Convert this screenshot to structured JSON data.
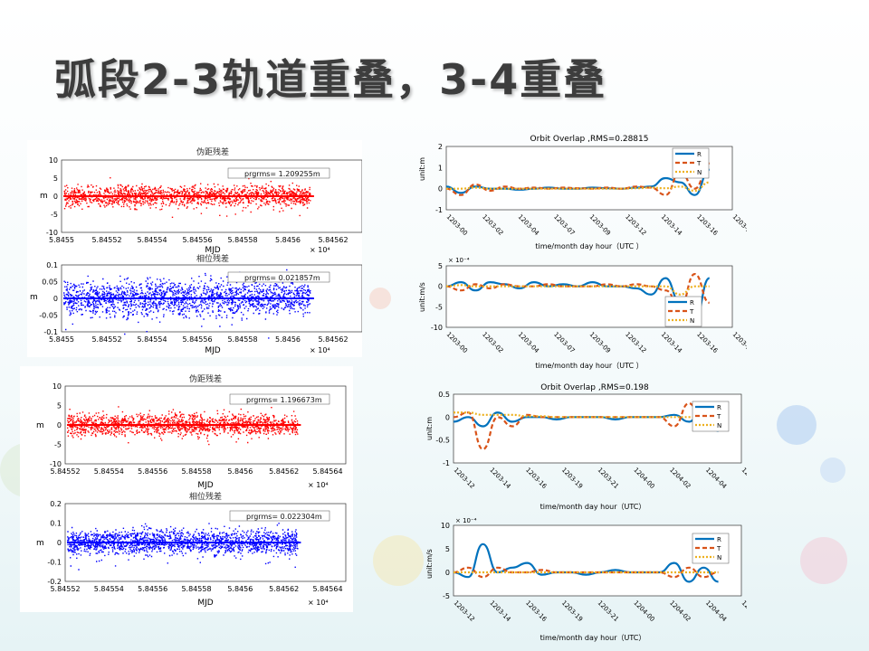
{
  "slide_title": "弧段2-3轨道重叠，3-4重叠",
  "left_top": {
    "chart1": {
      "title": "伪距残差",
      "legend": "prgrms= 1.209255m",
      "xlabel": "MJD",
      "ylabel": "m",
      "xticks": [
        "5.8455",
        "5.84552",
        "5.84554",
        "5.84556",
        "5.84558",
        "5.8456",
        "5.84562"
      ],
      "yticks": [
        "10",
        "5",
        "0",
        "-5",
        "-10"
      ],
      "exponent": "× 10⁴",
      "color": "#ff0000"
    },
    "chart2": {
      "title": "相位残差",
      "legend": "prgrms= 0.021857m",
      "xlabel": "MJD",
      "ylabel": "m",
      "xticks": [
        "5.8455",
        "5.84552",
        "5.84554",
        "5.84556",
        "5.84558",
        "5.8456",
        "5.84562"
      ],
      "yticks": [
        "0.1",
        "0.05",
        "0",
        "-0.05",
        "-0.1"
      ],
      "exponent": "× 10⁴",
      "color": "#0000ff"
    }
  },
  "left_bottom": {
    "chart1": {
      "title": "伪距残差",
      "legend": "prgrms= 1.196673m",
      "xlabel": "MJD",
      "ylabel": "m",
      "xticks": [
        "5.84552",
        "5.84554",
        "5.84556",
        "5.84558",
        "5.8456",
        "5.84562",
        "5.84564"
      ],
      "yticks": [
        "10",
        "5",
        "0",
        "-5",
        "-10"
      ],
      "exponent": "× 10⁴",
      "color": "#ff0000"
    },
    "chart2": {
      "title": "相位残差",
      "legend": "prgrms= 0.022304m",
      "xlabel": "MJD",
      "ylabel": "m",
      "xticks": [
        "5.84552",
        "5.84554",
        "5.84556",
        "5.84558",
        "5.8456",
        "5.84562",
        "5.84564"
      ],
      "yticks": [
        "0.2",
        "0.1",
        "0",
        "-0.1",
        "-0.2"
      ],
      "exponent": "× 10⁴",
      "color": "#0000ff"
    }
  },
  "right_top": {
    "pos": {
      "title": "Orbit Overlap ,RMS=0.28815",
      "ylabel": "unit:m",
      "xlabel": "time/month day hour（UTC ）",
      "yticks": [
        "2",
        "1",
        "0",
        "-1"
      ],
      "xticks": [
        "1203-00",
        "1203-02",
        "1203-04",
        "1203-07",
        "1203-09",
        "1203-12",
        "1203-14",
        "1203-16",
        "1203-19"
      ],
      "legend": [
        "R",
        "T",
        "N"
      ]
    },
    "vel": {
      "title": "",
      "ylabel": "unit:m/s",
      "xlabel": "time/month day hour（UTC ）",
      "exponent": "× 10⁻⁴",
      "yticks": [
        "5",
        "0",
        "-5",
        "-10"
      ],
      "xticks": [
        "1203-00",
        "1203-02",
        "1203-04",
        "1203-07",
        "1203-09",
        "1203-12",
        "1203-14",
        "1203-16",
        "1203-19"
      ],
      "legend": [
        "R",
        "T",
        "N"
      ]
    }
  },
  "right_bottom": {
    "pos": {
      "title": "Orbit Overlap ,RMS=0.198",
      "ylabel": "unit:m",
      "xlabel": "time/month day hour（UTC）",
      "yticks": [
        "0.5",
        "0",
        "-0.5",
        "-1"
      ],
      "xticks": [
        "1203-12",
        "1203-14",
        "1203-16",
        "1203-19",
        "1203-21",
        "1204-00",
        "1204-02",
        "1204-04",
        "1204-07"
      ],
      "legend": [
        "R",
        "T",
        "N"
      ]
    },
    "vel": {
      "title": "",
      "ylabel": "unit:m/s",
      "xlabel": "time/month day hour（UTC）",
      "exponent": "× 10⁻⁴",
      "yticks": [
        "10",
        "5",
        "0",
        "-5"
      ],
      "xticks": [
        "1203-12",
        "1203-14",
        "1203-16",
        "1203-19",
        "1203-21",
        "1204-00",
        "1204-02",
        "1204-04",
        "1204-07"
      ],
      "legend": [
        "R",
        "T",
        "N"
      ]
    }
  },
  "colors": {
    "R": "#0072bd",
    "T": "#d95319",
    "N": "#edb120",
    "red": "#ff0000",
    "blue": "#0000ff"
  },
  "chart_data": [
    {
      "type": "scatter",
      "title": "伪距残差",
      "xlabel": "MJD",
      "ylabel": "m",
      "xlim": [
        58455,
        58456.2
      ],
      "ylim": [
        -10,
        10
      ],
      "series": [
        {
          "name": "prgrms= 1.209255m",
          "band": [
            -4,
            4
          ]
        }
      ]
    },
    {
      "type": "scatter",
      "title": "相位残差",
      "xlabel": "MJD",
      "ylabel": "m",
      "xlim": [
        58455,
        58456.2
      ],
      "ylim": [
        -0.1,
        0.1
      ],
      "series": [
        {
          "name": "prgrms= 0.021857m",
          "band": [
            -0.06,
            0.06
          ]
        }
      ]
    },
    {
      "type": "scatter",
      "title": "伪距残差",
      "xlabel": "MJD",
      "ylabel": "m",
      "xlim": [
        58455.2,
        58456.4
      ],
      "ylim": [
        -10,
        10
      ],
      "series": [
        {
          "name": "prgrms= 1.196673m",
          "band": [
            -4,
            4
          ]
        }
      ]
    },
    {
      "type": "scatter",
      "title": "相位残差",
      "xlabel": "MJD",
      "ylabel": "m",
      "xlim": [
        58455.2,
        58456.4
      ],
      "ylim": [
        -0.2,
        0.2
      ],
      "series": [
        {
          "name": "prgrms= 0.022304m",
          "band": [
            -0.08,
            0.08
          ]
        }
      ]
    },
    {
      "type": "line",
      "title": "Orbit Overlap ,RMS=0.28815",
      "ylabel": "unit:m",
      "ylim": [
        -1,
        2
      ],
      "x": [
        0,
        1,
        2,
        3,
        4,
        5,
        6,
        7,
        8,
        9,
        10,
        11,
        12,
        13,
        14,
        15,
        16,
        17,
        18
      ],
      "series": [
        {
          "name": "R",
          "values": [
            0.1,
            -0.2,
            0.1,
            0,
            0,
            -0.05,
            0,
            0.05,
            0,
            0,
            0.05,
            0.02,
            0,
            0.05,
            0.1,
            0.5,
            0.3,
            -0.3,
            0.9
          ]
        },
        {
          "name": "T",
          "values": [
            0,
            -0.3,
            0.2,
            -0.1,
            0.1,
            0,
            0.05,
            0,
            0.05,
            0.02,
            0,
            0.05,
            0,
            0.1,
            0.05,
            -0.3,
            0.8,
            0,
            1.2
          ]
        },
        {
          "name": "N",
          "values": [
            0,
            0,
            0.05,
            0,
            0,
            0,
            0,
            0,
            0,
            0,
            0,
            0,
            0,
            0.02,
            0.05,
            0.02,
            0.1,
            -0.1,
            0.3
          ]
        }
      ]
    },
    {
      "type": "line",
      "ylabel": "unit:m/s",
      "ylim": [
        -10,
        5
      ],
      "x": [
        0,
        1,
        2,
        3,
        4,
        5,
        6,
        7,
        8,
        9,
        10,
        11,
        12,
        13,
        14,
        15,
        16,
        17,
        18
      ],
      "series": [
        {
          "name": "R",
          "values": [
            0,
            1,
            -1,
            1,
            0.5,
            -0.5,
            1,
            0,
            0.5,
            0,
            1,
            0,
            0,
            -0.5,
            -2,
            2,
            -4,
            -8,
            2
          ]
        },
        {
          "name": "T",
          "values": [
            0,
            -1,
            0.5,
            -0.5,
            0.5,
            0,
            0,
            0.5,
            0,
            0,
            0,
            0.5,
            0,
            0.5,
            0,
            -1,
            -5,
            3,
            -4
          ]
        },
        {
          "name": "N",
          "values": [
            0,
            0.3,
            0,
            0,
            0,
            0,
            0,
            0,
            0,
            0,
            0,
            0,
            0,
            0,
            0,
            0,
            -2,
            0,
            0
          ]
        }
      ]
    },
    {
      "type": "line",
      "title": "Orbit Overlap ,RMS=0.198",
      "ylabel": "unit:m",
      "ylim": [
        -1,
        0.5
      ],
      "x": [
        0,
        1,
        2,
        3,
        4,
        5,
        6,
        7,
        8,
        9,
        10,
        11,
        12,
        13,
        14,
        15,
        16,
        17,
        18
      ],
      "series": [
        {
          "name": "R",
          "values": [
            -0.1,
            0,
            -0.2,
            0.1,
            -0.1,
            0,
            0,
            -0.05,
            0,
            0,
            0,
            -0.05,
            0,
            0,
            0,
            0.05,
            -0.1,
            0.2,
            -0.3
          ]
        },
        {
          "name": "T",
          "values": [
            0,
            0.1,
            -0.7,
            0,
            -0.2,
            0.05,
            0,
            0,
            0,
            0,
            0,
            0,
            0,
            0,
            0,
            -0.2,
            0.3,
            -0.1,
            0
          ]
        },
        {
          "name": "N",
          "values": [
            0.1,
            0.1,
            0.05,
            0.05,
            0.05,
            0.02,
            0.02,
            0,
            0,
            0,
            0,
            0,
            0,
            0,
            0,
            0,
            0,
            0,
            0
          ]
        }
      ]
    },
    {
      "type": "line",
      "ylabel": "unit:m/s",
      "ylim": [
        -5,
        10
      ],
      "x": [
        0,
        1,
        2,
        3,
        4,
        5,
        6,
        7,
        8,
        9,
        10,
        11,
        12,
        13,
        14,
        15,
        16,
        17,
        18
      ],
      "series": [
        {
          "name": "R",
          "values": [
            0,
            -1,
            6,
            0,
            1,
            2,
            -0.5,
            0,
            0,
            -0.5,
            0,
            0.5,
            0,
            0,
            0,
            2,
            -2,
            1,
            -2
          ]
        },
        {
          "name": "T",
          "values": [
            0,
            1,
            -1,
            1,
            0,
            0,
            0.5,
            0,
            0,
            0,
            0,
            0,
            0,
            0,
            0,
            -1,
            1,
            -1,
            0
          ]
        },
        {
          "name": "N",
          "values": [
            0,
            0,
            0,
            0,
            0,
            0,
            0,
            0,
            0,
            0,
            0,
            0,
            0,
            0,
            0,
            0,
            0,
            0,
            0
          ]
        }
      ]
    }
  ]
}
